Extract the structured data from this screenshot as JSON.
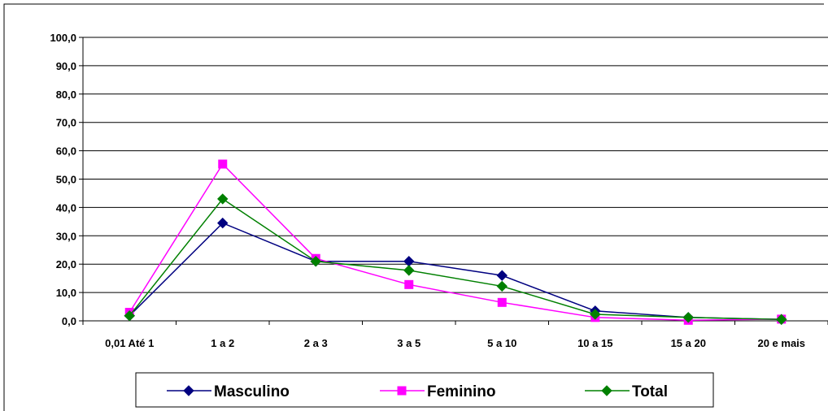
{
  "chart_data": {
    "type": "line",
    "categories": [
      "0,01 Até 1",
      "1 a 2",
      "2 a 3",
      "3 a 5",
      "5 a 10",
      "10 a 15",
      "15 a 20",
      "20 e mais"
    ],
    "yticks": [
      "0,0",
      "10,0",
      "20,0",
      "30,0",
      "40,0",
      "50,0",
      "60,0",
      "70,0",
      "80,0",
      "90,0",
      "100,0"
    ],
    "ylim": [
      0,
      100
    ],
    "grid": "horizontal",
    "legend": "bottom",
    "series": [
      {
        "name": "Masculino",
        "color": "#000080",
        "marker": "diamond",
        "values": [
          1.8,
          34.5,
          21.0,
          21.0,
          16.0,
          3.5,
          1.2,
          0.5
        ]
      },
      {
        "name": "Feminino",
        "color": "#FF00FF",
        "marker": "square",
        "values": [
          3.0,
          55.3,
          22.0,
          12.8,
          6.5,
          1.2,
          0.2,
          0.6
        ]
      },
      {
        "name": "Total",
        "color": "#008000",
        "marker": "diamond",
        "values": [
          1.8,
          43.0,
          21.0,
          17.8,
          12.2,
          2.3,
          1.2,
          0.5
        ]
      }
    ]
  }
}
